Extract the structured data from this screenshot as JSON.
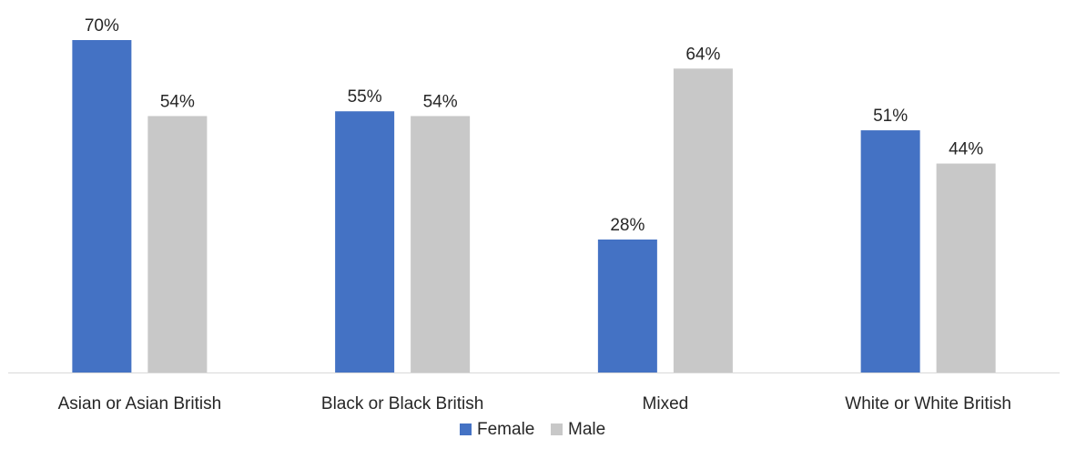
{
  "chart_data": {
    "type": "bar",
    "title": "",
    "xlabel": "",
    "ylabel": "",
    "categories": [
      "Asian or Asian British",
      "Black or Black British",
      "Mixed",
      "White or White British"
    ],
    "series": [
      {
        "name": "Female",
        "values": [
          70,
          55,
          28,
          51
        ],
        "color": "#4472C4"
      },
      {
        "name": "Male",
        "values": [
          54,
          54,
          64,
          44
        ],
        "color": "#C8C8C8"
      }
    ],
    "value_suffix": "%",
    "ylim": [
      0,
      70
    ],
    "grid": false,
    "legend_position": "bottom",
    "axis_color": "#D9D9D9"
  }
}
